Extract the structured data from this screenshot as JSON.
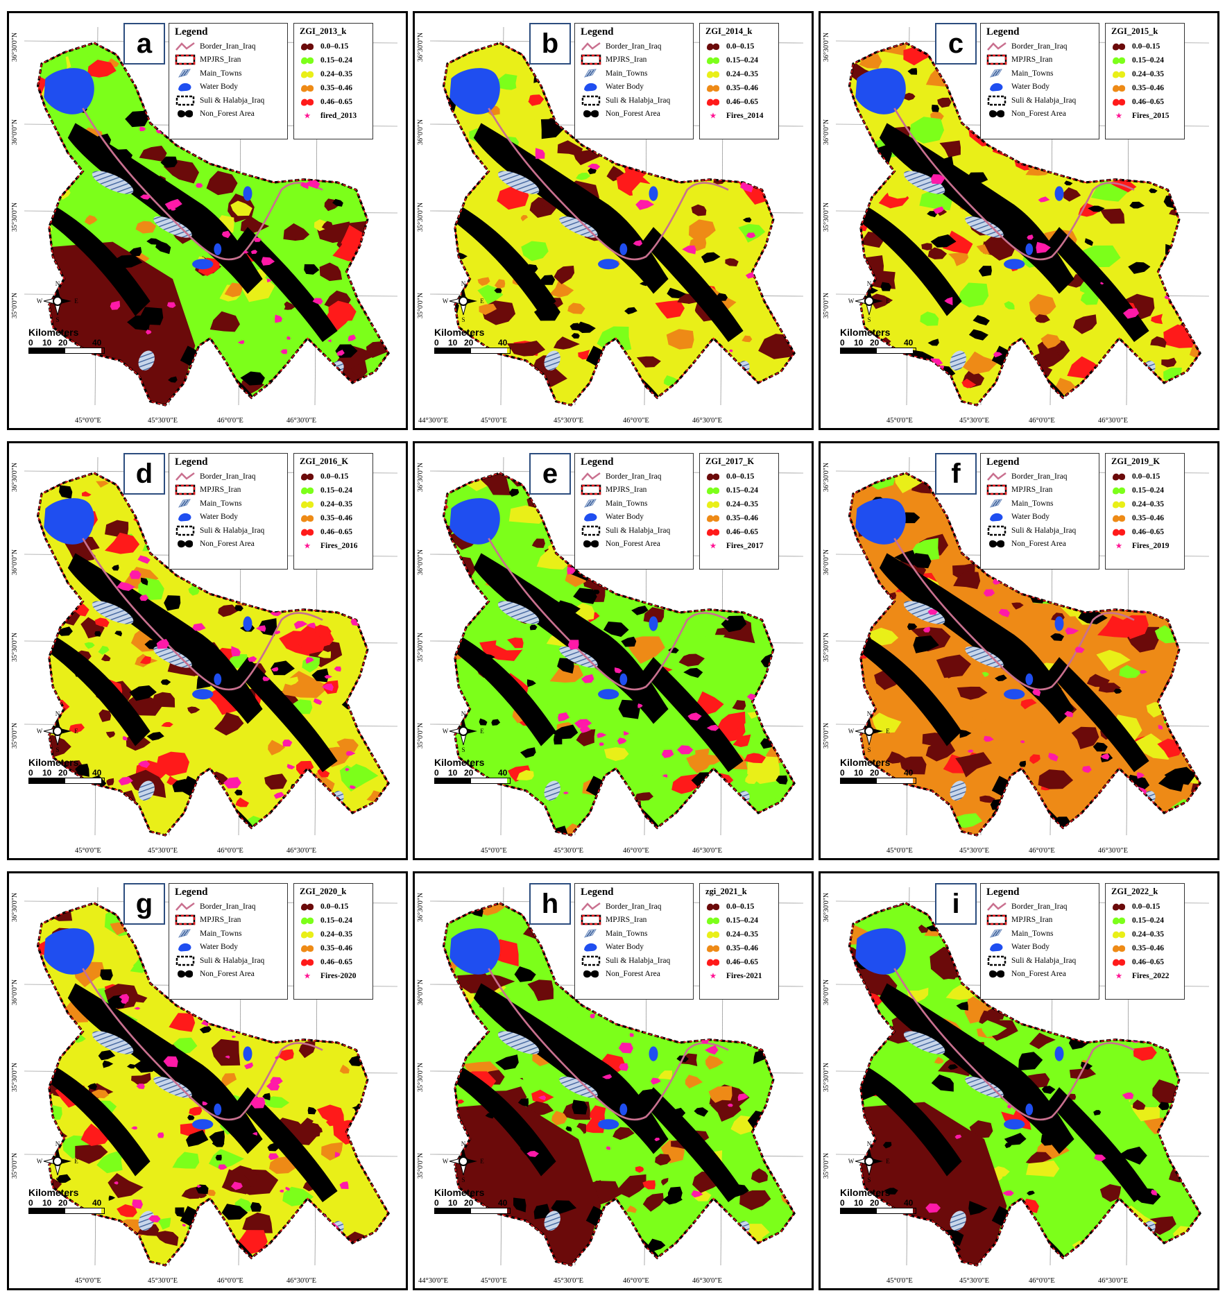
{
  "legend": {
    "title": "Legend",
    "items": [
      {
        "label": "Border_Iran_Iraq",
        "symbol": "border-line"
      },
      {
        "label": "MPJRS_Iran",
        "symbol": "dashed-red-box"
      },
      {
        "label": "Main_Towns",
        "symbol": "hatched-polygon"
      },
      {
        "label": "Water Body",
        "symbol": "blue-polygon"
      },
      {
        "label": "Suli & Halabja_Iraq",
        "symbol": "dashed-black-box"
      },
      {
        "label": "Non_Forest Area",
        "symbol": "black-polygon"
      }
    ]
  },
  "colors": {
    "class_colors": [
      "#6b0a0a",
      "#7cff1a",
      "#e9ef18",
      "#ee8a16",
      "#ff1a1a"
    ],
    "fire": "#ff1aa8",
    "water": "#1f4ef0",
    "non_forest": "#000000",
    "border": "#c9708f",
    "frame": "#2b4c7e"
  },
  "zgi_classes": [
    "0.0–0.15",
    "0.15–0.24",
    "0.24–0.35",
    "0.35–0.46",
    "0.46–0.65"
  ],
  "scale": {
    "title": "Kilometers",
    "ticks": [
      "0",
      "10",
      "20",
      "40"
    ]
  },
  "north": {
    "n": "N",
    "s": "S",
    "e": "E",
    "w": "W"
  },
  "lat_labels": [
    "36°30'0\"N",
    "36°0'0\"N",
    "35°30'0\"N",
    "35°0'0\"N"
  ],
  "lon_labels_standard": [
    "45°0'0\"E",
    "45°30'0\"E",
    "46°0'0\"E",
    "46°30'0\"E"
  ],
  "lon_labels_wide": [
    "44°30'0\"E",
    "45°0'0\"E",
    "45°30'0\"E",
    "46°0'0\"E",
    "46°30'0\"E"
  ],
  "panels": [
    {
      "letter": "a",
      "zgi_title": "ZGI_2013_k",
      "fire_label": "fired_2013",
      "lon_set": "standard",
      "fire_count": 28,
      "dominant": 1
    },
    {
      "letter": "b",
      "zgi_title": "ZGI_2014_k",
      "fire_label": "Fires_2014",
      "lon_set": "wide",
      "fire_count": 14,
      "dominant": 2
    },
    {
      "letter": "c",
      "zgi_title": "ZGI_2015_k",
      "fire_label": "Fires_2015",
      "lon_set": "standard",
      "fire_count": 16,
      "dominant": 2
    },
    {
      "letter": "d",
      "zgi_title": "ZGI_2016_K",
      "fire_label": "Fires_2016",
      "lon_set": "standard",
      "fire_count": 38,
      "dominant": 2
    },
    {
      "letter": "e",
      "zgi_title": "ZGI_2017_K",
      "fire_label": "Fires_2017",
      "lon_set": "standard",
      "fire_count": 20,
      "dominant": 1
    },
    {
      "letter": "f",
      "zgi_title": "ZGI_2019_K",
      "fire_label": "Fires_2019",
      "lon_set": "standard",
      "fire_count": 22,
      "dominant": 3
    },
    {
      "letter": "g",
      "zgi_title": "ZGI_2020_k",
      "fire_label": "Fires-2020",
      "lon_set": "standard",
      "fire_count": 34,
      "dominant": 2
    },
    {
      "letter": "h",
      "zgi_title": "zgi_2021_k",
      "fire_label": "Fires-2021",
      "lon_set": "wide",
      "fire_count": 18,
      "dominant": 1
    },
    {
      "letter": "i",
      "zgi_title": "ZGI_2022_k",
      "fire_label": "Fires_2022",
      "lon_set": "standard",
      "fire_count": 10,
      "dominant": 1
    }
  ]
}
